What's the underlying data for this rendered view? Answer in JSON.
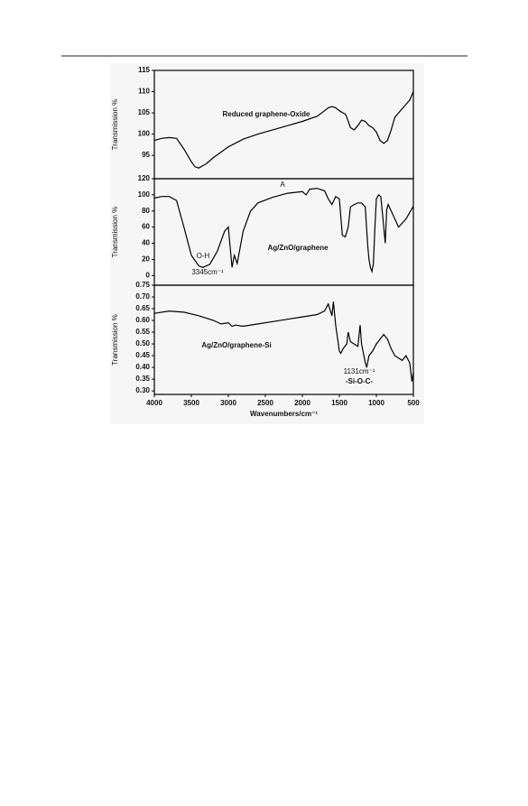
{
  "chart_data": [
    {
      "type": "line",
      "ylabel": "Transmission %",
      "xlim": [
        4000,
        500
      ],
      "ylim": [
        89.5,
        115
      ],
      "yticks": [
        95,
        100,
        105,
        110,
        115
      ],
      "annotations": [
        "Reduced graphene-Oxide"
      ],
      "x": [
        4000,
        3900,
        3800,
        3700,
        3600,
        3500,
        3450,
        3400,
        3300,
        3200,
        3000,
        2800,
        2600,
        2400,
        2200,
        2000,
        1800,
        1700,
        1650,
        1600,
        1550,
        1500,
        1450,
        1420,
        1400,
        1350,
        1300,
        1250,
        1200,
        1150,
        1100,
        1050,
        1000,
        950,
        900,
        850,
        800,
        750,
        700,
        650,
        600,
        550,
        500
      ],
      "values": [
        98.5,
        99,
        99.2,
        99,
        96.5,
        93.5,
        92.3,
        92,
        93,
        94.5,
        97,
        98.8,
        100,
        101,
        102,
        103,
        104.2,
        105.5,
        106.2,
        106.5,
        106.2,
        105.5,
        105,
        104.7,
        104,
        101.5,
        101,
        102,
        103.3,
        103,
        102,
        101.5,
        100.5,
        98.5,
        97.8,
        98.5,
        101,
        104,
        105,
        106,
        107,
        108,
        110
      ]
    },
    {
      "type": "line",
      "ylabel": "Transmission %",
      "xlim": [
        4000,
        500
      ],
      "ylim": [
        -12,
        120
      ],
      "yticks": [
        0,
        20,
        40,
        60,
        80,
        100,
        120
      ],
      "annotations": [
        "A",
        "O-H",
        "3345cm⁻¹",
        "Ag/ZnO/graphene"
      ],
      "x": [
        4000,
        3900,
        3800,
        3700,
        3600,
        3500,
        3400,
        3345,
        3250,
        3150,
        3050,
        3000,
        2980,
        2950,
        2920,
        2880,
        2850,
        2800,
        2700,
        2600,
        2400,
        2200,
        2000,
        1950,
        1900,
        1800,
        1700,
        1650,
        1600,
        1550,
        1500,
        1460,
        1420,
        1380,
        1350,
        1300,
        1250,
        1200,
        1150,
        1120,
        1100,
        1080,
        1060,
        1040,
        1020,
        1000,
        970,
        940,
        900,
        880,
        860,
        840,
        800,
        700,
        600,
        500
      ],
      "values": [
        96,
        98,
        98,
        93,
        60,
        25,
        12,
        10,
        14,
        30,
        55,
        60,
        40,
        10,
        25,
        15,
        30,
        55,
        80,
        90,
        97,
        102,
        104,
        100,
        107,
        108,
        105,
        95,
        88,
        98,
        95,
        50,
        48,
        60,
        85,
        88,
        90,
        90,
        85,
        40,
        20,
        10,
        5,
        15,
        60,
        95,
        100,
        98,
        60,
        40,
        82,
        88,
        80,
        60,
        70,
        86
      ]
    },
    {
      "type": "line",
      "ylabel": "Transmission %",
      "xlabel": "Wavenumbers/cm⁻¹",
      "xlim": [
        4000,
        500
      ],
      "ylim": [
        0.285,
        0.75
      ],
      "xticks": [
        4000,
        3500,
        3000,
        2500,
        2000,
        1500,
        1000,
        500
      ],
      "yticks": [
        {
          "value": 0.3,
          "label": "0.30"
        },
        0.35,
        {
          "value": 0.4,
          "label": "0.40"
        },
        0.45,
        {
          "value": 0.5,
          "label": "0.50"
        },
        0.55,
        {
          "value": 0.6,
          "label": "0.60"
        },
        0.65,
        {
          "value": 0.7,
          "label": "0.70"
        },
        0.75
      ],
      "annotations": [
        "Ag/ZnO/graphene-Si",
        "1131cm⁻¹",
        "-Si-O-C-"
      ],
      "x": [
        4000,
        3800,
        3600,
        3400,
        3200,
        3100,
        3000,
        2950,
        2900,
        2800,
        2600,
        2400,
        2200,
        2000,
        1800,
        1700,
        1650,
        1600,
        1580,
        1550,
        1500,
        1480,
        1450,
        1400,
        1380,
        1350,
        1300,
        1250,
        1220,
        1200,
        1150,
        1131,
        1100,
        1050,
        1000,
        950,
        900,
        850,
        800,
        750,
        700,
        650,
        600,
        550,
        520,
        500
      ],
      "values": [
        0.63,
        0.64,
        0.635,
        0.62,
        0.6,
        0.585,
        0.59,
        0.575,
        0.58,
        0.575,
        0.585,
        0.595,
        0.605,
        0.615,
        0.625,
        0.64,
        0.67,
        0.62,
        0.68,
        0.58,
        0.47,
        0.46,
        0.48,
        0.5,
        0.55,
        0.51,
        0.5,
        0.49,
        0.58,
        0.5,
        0.42,
        0.4,
        0.45,
        0.47,
        0.5,
        0.52,
        0.54,
        0.52,
        0.48,
        0.45,
        0.44,
        0.43,
        0.45,
        0.42,
        0.34,
        0.38
      ]
    }
  ]
}
